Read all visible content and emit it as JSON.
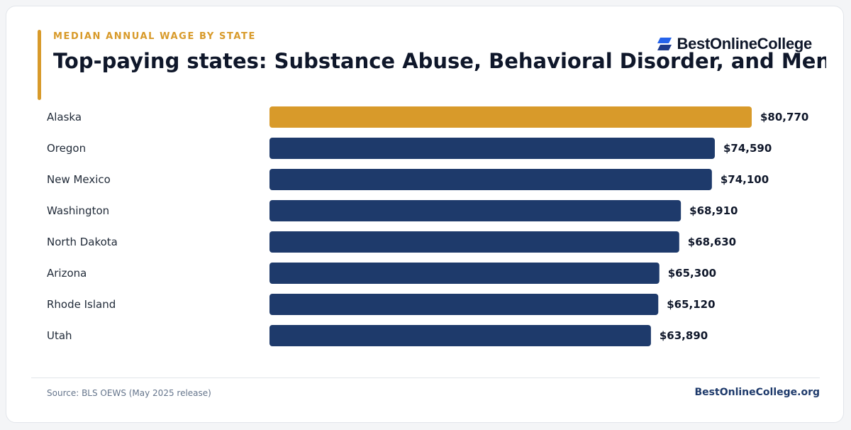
{
  "header": {
    "eyebrow": "MEDIAN ANNUAL WAGE BY STATE",
    "title": "Top-paying states: Substance Abuse, Behavioral Disorder, and Menta..."
  },
  "brand": {
    "logo_text": "BestOnlineCollege",
    "logo_icon": "stacked-parallelogram-icon"
  },
  "footer": {
    "source": "Source: BLS OEWS (May 2025 release)",
    "site": "BestOnlineCollege.org"
  },
  "colors": {
    "highlight": "#d89a2a",
    "bar": "#1e3a6b",
    "accent": "#d89a2a",
    "text": "#0f172a"
  },
  "chart_data": {
    "type": "bar",
    "orientation": "horizontal",
    "categories": [
      "Alaska",
      "Oregon",
      "New Mexico",
      "Washington",
      "North Dakota",
      "Arizona",
      "Rhode Island",
      "Utah"
    ],
    "values": [
      80770,
      74590,
      74100,
      68910,
      68630,
      65300,
      65120,
      63890
    ],
    "value_labels": [
      "$80,770",
      "$74,590",
      "$74,100",
      "$68,910",
      "$68,630",
      "$65,300",
      "$65,120",
      "$63,890"
    ],
    "highlight_index": 0,
    "xlim": [
      0,
      80770
    ],
    "grid": false,
    "legend": "none"
  }
}
